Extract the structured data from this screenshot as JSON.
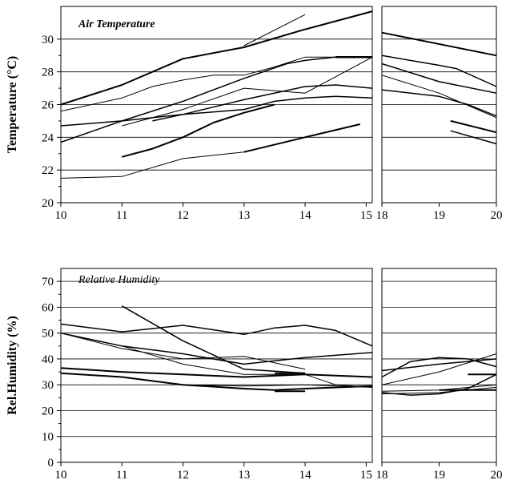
{
  "chart_data": [
    {
      "type": "line",
      "title": "Air Temperature",
      "ylabel": "Temperature (°C)",
      "ylim": [
        20,
        32
      ],
      "yticks": [
        "20",
        "22",
        "24",
        "26",
        "28",
        "30"
      ],
      "segments": [
        {
          "xlim": [
            10,
            15.1
          ],
          "xticks": [
            "10",
            "11",
            "12",
            "13",
            "14",
            "15"
          ]
        },
        {
          "xlim": [
            18,
            20
          ],
          "xticks": [
            "18",
            "19",
            "20"
          ]
        }
      ],
      "grid": "horizontal",
      "series": [
        {
          "w": 2.0,
          "points": [
            [
              10,
              26
            ],
            [
              11,
              27.2
            ],
            [
              12,
              28.8
            ],
            [
              13,
              29.5
            ],
            [
              14,
              30.6
            ],
            [
              15.1,
              31.7
            ]
          ]
        },
        {
          "w": 1.0,
          "points": [
            [
              13,
              29.6
            ],
            [
              14,
              31.5
            ]
          ]
        },
        {
          "w": 1.0,
          "points": [
            [
              10,
              25.6
            ],
            [
              11,
              26.4
            ],
            [
              11.5,
              27.1
            ],
            [
              12,
              27.5
            ],
            [
              12.5,
              27.8
            ],
            [
              13,
              27.8
            ],
            [
              13.5,
              28.3
            ],
            [
              14,
              28.9
            ],
            [
              15.1,
              28.9
            ]
          ]
        },
        {
          "w": 1.5,
          "points": [
            [
              10,
              23.7
            ],
            [
              11,
              25
            ],
            [
              12,
              26.2
            ],
            [
              13,
              27.6
            ],
            [
              13.7,
              28.5
            ],
            [
              14,
              28.7
            ],
            [
              14.5,
              28.9
            ],
            [
              15.1,
              28.9
            ]
          ]
        },
        {
          "w": 2.5,
          "points": [
            [
              14.5,
              28.9
            ],
            [
              15.1,
              28.9
            ]
          ]
        },
        {
          "w": 1.0,
          "points": [
            [
              11,
              24.7
            ],
            [
              12,
              25.7
            ],
            [
              13,
              27.0
            ],
            [
              14,
              26.7
            ],
            [
              15.1,
              28.9
            ]
          ]
        },
        {
          "w": 1.5,
          "points": [
            [
              10,
              24.7
            ],
            [
              11,
              25.0
            ],
            [
              12,
              25.4
            ],
            [
              13,
              26.3
            ],
            [
              14,
              27.1
            ],
            [
              14.5,
              27.2
            ],
            [
              15.1,
              27.0
            ]
          ]
        },
        {
          "w": 1.5,
          "points": [
            [
              11.5,
              25.0
            ],
            [
              12,
              25.4
            ],
            [
              13,
              25.7
            ],
            [
              13.5,
              26.2
            ],
            [
              14,
              26.4
            ],
            [
              14.5,
              26.5
            ],
            [
              15.1,
              26.4
            ]
          ]
        },
        {
          "w": 2.0,
          "points": [
            [
              11,
              22.8
            ],
            [
              11.5,
              23.3
            ],
            [
              12,
              24.0
            ],
            [
              12.5,
              24.9
            ],
            [
              13,
              25.5
            ],
            [
              13.5,
              26.0
            ]
          ]
        },
        {
          "w": 2.0,
          "points": [
            [
              13,
              23.1
            ],
            [
              14,
              24.0
            ],
            [
              14.9,
              24.8
            ]
          ]
        },
        {
          "w": 1.0,
          "points": [
            [
              10,
              21.5
            ],
            [
              11,
              21.6
            ],
            [
              12,
              22.7
            ],
            [
              13,
              23.1
            ]
          ]
        },
        {
          "w": 2.0,
          "points": [
            [
              18,
              30.4
            ],
            [
              20,
              29.0
            ]
          ]
        },
        {
          "w": 1.5,
          "points": [
            [
              18,
              29.0
            ],
            [
              19,
              28.4
            ],
            [
              19.3,
              28.2
            ],
            [
              20,
              27.1
            ]
          ]
        },
        {
          "w": 1.5,
          "points": [
            [
              18,
              28.5
            ],
            [
              19,
              27.4
            ],
            [
              20,
              26.7
            ]
          ]
        },
        {
          "w": 1.0,
          "points": [
            [
              18,
              27.8
            ],
            [
              19,
              26.7
            ],
            [
              20,
              25.2
            ]
          ]
        },
        {
          "w": 1.5,
          "points": [
            [
              18,
              26.9
            ],
            [
              19,
              26.5
            ],
            [
              19.5,
              26.0
            ],
            [
              20,
              25.3
            ]
          ]
        },
        {
          "w": 2.0,
          "points": [
            [
              19.2,
              25.0
            ],
            [
              20,
              24.3
            ]
          ]
        },
        {
          "w": 1.5,
          "points": [
            [
              19.2,
              24.4
            ],
            [
              20,
              23.6
            ]
          ]
        }
      ]
    },
    {
      "type": "line",
      "title": "Relative Humidity",
      "ylabel": "Rel.Humidity (%)",
      "ylim": [
        0,
        75
      ],
      "yticks": [
        "0",
        "10",
        "20",
        "30",
        "40",
        "50",
        "60",
        "70"
      ],
      "segments": [
        {
          "xlim": [
            10,
            15.1
          ],
          "xticks": [
            "10",
            "11",
            "12",
            "13",
            "14",
            "15"
          ]
        },
        {
          "xlim": [
            18,
            20
          ],
          "xticks": [
            "18",
            "19",
            "20"
          ]
        }
      ],
      "grid": "horizontal",
      "series": [
        {
          "w": 1.5,
          "points": [
            [
              10,
              53.5
            ],
            [
              11,
              50.5
            ],
            [
              12,
              53
            ],
            [
              13,
              49.5
            ],
            [
              13.5,
              52
            ],
            [
              14,
              53
            ],
            [
              14.5,
              51
            ],
            [
              15.1,
              45
            ]
          ]
        },
        {
          "w": 1.5,
          "points": [
            [
              11,
              60.5
            ],
            [
              12,
              47
            ],
            [
              13,
              36
            ],
            [
              14,
              34.5
            ]
          ]
        },
        {
          "w": 1.5,
          "points": [
            [
              10,
              50
            ],
            [
              11,
              45
            ],
            [
              12,
              42
            ],
            [
              13,
              38
            ],
            [
              14,
              40.5
            ],
            [
              15.1,
              42.5
            ]
          ]
        },
        {
          "w": 1.0,
          "points": [
            [
              10,
              50
            ],
            [
              11,
              44
            ],
            [
              12,
              40
            ],
            [
              13,
              41
            ],
            [
              14,
              36
            ]
          ]
        },
        {
          "w": 1.0,
          "points": [
            [
              10,
              50
            ],
            [
              11,
              45
            ],
            [
              12,
              38
            ],
            [
              13,
              34
            ],
            [
              14,
              34
            ],
            [
              14.5,
              30
            ],
            [
              15.1,
              29
            ]
          ]
        },
        {
          "w": 2.0,
          "points": [
            [
              10,
              36.5
            ],
            [
              11,
              35
            ],
            [
              12,
              34
            ],
            [
              13,
              33
            ],
            [
              14,
              34
            ],
            [
              15.1,
              33
            ]
          ]
        },
        {
          "w": 2.0,
          "points": [
            [
              10,
              34.5
            ],
            [
              11,
              33
            ],
            [
              12,
              30
            ],
            [
              13,
              28.5
            ],
            [
              13.5,
              28
            ],
            [
              14,
              28.5
            ],
            [
              15.1,
              29.5
            ]
          ]
        },
        {
          "w": 1.0,
          "points": [
            [
              12,
              30
            ],
            [
              13,
              29.5
            ],
            [
              14,
              30
            ],
            [
              15.1,
              29
            ]
          ]
        },
        {
          "w": 2.0,
          "points": [
            [
              13.5,
              34.5
            ],
            [
              14,
              34.5
            ]
          ]
        },
        {
          "w": 2.0,
          "points": [
            [
              13.5,
              27.5
            ],
            [
              14,
              27.5
            ]
          ]
        },
        {
          "w": 1.5,
          "points": [
            [
              18,
              35.5
            ],
            [
              19,
              38
            ],
            [
              20,
              40
            ]
          ]
        },
        {
          "w": 1.5,
          "points": [
            [
              18,
              33
            ],
            [
              18.5,
              39
            ],
            [
              19,
              40.5
            ],
            [
              19.5,
              40
            ],
            [
              20,
              37
            ]
          ]
        },
        {
          "w": 1.0,
          "points": [
            [
              18,
              30
            ],
            [
              19,
              35
            ],
            [
              20,
              42
            ]
          ]
        },
        {
          "w": 1.5,
          "points": [
            [
              18,
              27
            ],
            [
              18.5,
              26
            ],
            [
              19,
              26.5
            ],
            [
              19.5,
              28.5
            ],
            [
              20,
              34
            ]
          ]
        },
        {
          "w": 1.0,
          "points": [
            [
              18,
              27.5
            ],
            [
              19,
              28
            ],
            [
              20,
              30
            ]
          ]
        },
        {
          "w": 1.0,
          "points": [
            [
              18,
              26.5
            ],
            [
              19,
              27
            ],
            [
              20,
              29
            ]
          ]
        },
        {
          "w": 2.0,
          "points": [
            [
              19.5,
              34
            ],
            [
              20,
              34
            ]
          ]
        },
        {
          "w": 2.0,
          "points": [
            [
              19,
              28
            ],
            [
              20,
              28
            ]
          ]
        }
      ]
    }
  ]
}
